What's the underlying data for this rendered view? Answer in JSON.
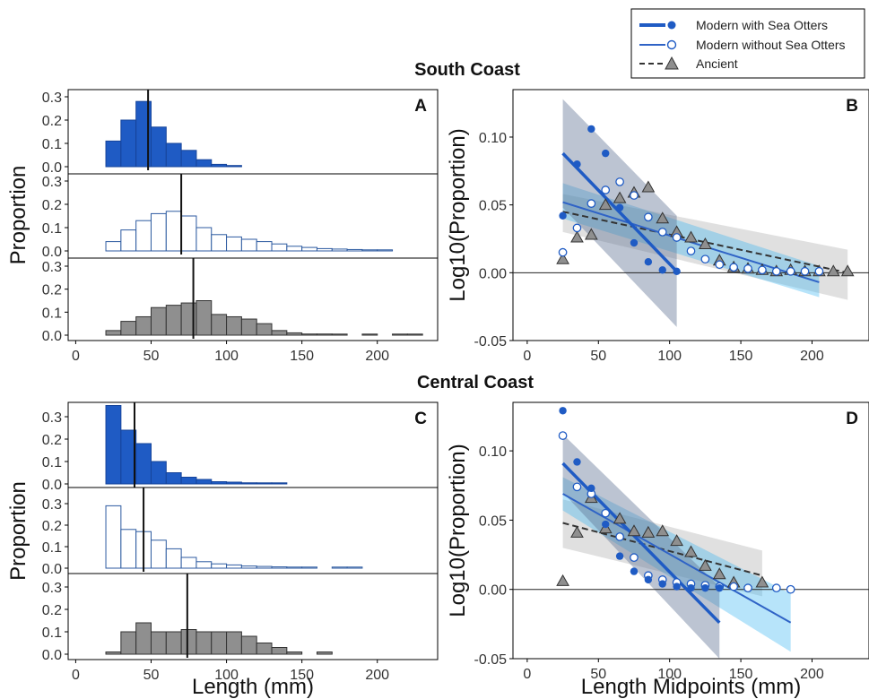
{
  "colors": {
    "modern_with": "#1f5bc4",
    "modern_without_edge": "#2c5aa0",
    "ancient": "#8f8f8f",
    "band_with": "#5f7394",
    "band_without": "#30b2f2",
    "band_ancient": "#d6d6d6",
    "median_line": "#111111"
  },
  "legend": {
    "modern_with": "Modern with Sea Otters",
    "modern_without": "Modern without Sea Otters",
    "ancient": "Ancient"
  },
  "titles": {
    "south": "South Coast",
    "central": "Central Coast"
  },
  "chart_data": [
    {
      "id": "A",
      "panel_label": "A",
      "type": "bar",
      "subtype": "stacked histograms",
      "ylabel": "Proportion",
      "xlim": [
        -5,
        240
      ],
      "xticks": [
        0,
        50,
        100,
        150,
        200
      ],
      "yticks": [
        0.0,
        0.1,
        0.2,
        0.3
      ],
      "bin_width": 10,
      "show_x_labels": true,
      "groups": [
        {
          "name": "Modern with Sea Otters",
          "fill": "modern_with",
          "median": 48,
          "centers": [
            25,
            35,
            45,
            55,
            65,
            75,
            85,
            95,
            105
          ],
          "values": [
            0.11,
            0.2,
            0.28,
            0.17,
            0.1,
            0.07,
            0.03,
            0.01,
            0.005
          ]
        },
        {
          "name": "Modern without Sea Otters",
          "fill": "none",
          "median": 70,
          "centers": [
            25,
            35,
            45,
            55,
            65,
            75,
            85,
            95,
            105,
            115,
            125,
            135,
            145,
            155,
            165,
            175,
            185,
            195,
            205
          ],
          "values": [
            0.04,
            0.09,
            0.13,
            0.16,
            0.17,
            0.15,
            0.1,
            0.07,
            0.06,
            0.05,
            0.04,
            0.03,
            0.02,
            0.015,
            0.01,
            0.008,
            0.006,
            0.004,
            0.003
          ]
        },
        {
          "name": "Ancient",
          "fill": "ancient",
          "median": 78,
          "centers": [
            25,
            35,
            45,
            55,
            65,
            75,
            85,
            95,
            105,
            115,
            125,
            135,
            145,
            155,
            165,
            175,
            195,
            215,
            225
          ],
          "values": [
            0.02,
            0.06,
            0.08,
            0.12,
            0.13,
            0.14,
            0.15,
            0.09,
            0.08,
            0.07,
            0.05,
            0.02,
            0.01,
            0.005,
            0.005,
            0.002,
            0.002,
            0.001,
            0.001
          ]
        }
      ]
    },
    {
      "id": "B",
      "panel_label": "B",
      "type": "scatter",
      "ylabel": "Log10(Proportion)",
      "xlim": [
        -10,
        240
      ],
      "ylim": [
        -0.05,
        0.135
      ],
      "xticks": [
        0,
        50,
        100,
        150,
        200
      ],
      "yticks": [
        -0.05,
        0.0,
        0.05,
        0.1
      ],
      "ytick_labels": [
        "-0.05",
        "0.00",
        "0.05",
        "0.10"
      ],
      "show_x_labels": true,
      "series": [
        {
          "name": "Modern with Sea Otters",
          "marker": "dot",
          "x": [
            25,
            35,
            45,
            55,
            65,
            75,
            85,
            95,
            105
          ],
          "y": [
            0.042,
            0.08,
            0.106,
            0.088,
            0.048,
            0.022,
            0.008,
            0.002,
            0.001
          ],
          "fit": [
            [
              25,
              0.088
            ],
            [
              105,
              0.001
            ]
          ],
          "band_lo": [
            [
              25,
              0.048
            ],
            [
              105,
              -0.04
            ]
          ],
          "band_hi": [
            [
              25,
              0.128
            ],
            [
              105,
              0.042
            ]
          ]
        },
        {
          "name": "Modern without Sea Otters",
          "marker": "circle",
          "x": [
            25,
            35,
            45,
            55,
            65,
            75,
            85,
            95,
            105,
            115,
            125,
            135,
            145,
            155,
            165,
            175,
            185,
            195,
            205
          ],
          "y": [
            0.015,
            0.033,
            0.051,
            0.061,
            0.067,
            0.057,
            0.041,
            0.03,
            0.026,
            0.016,
            0.01,
            0.006,
            0.004,
            0.003,
            0.002,
            0.001,
            0.001,
            0.001,
            0.001
          ],
          "fit": [
            [
              25,
              0.052
            ],
            [
              205,
              -0.007
            ]
          ],
          "band_lo": [
            [
              25,
              0.04
            ],
            [
              205,
              -0.018
            ]
          ],
          "band_hi": [
            [
              25,
              0.066
            ],
            [
              205,
              0.005
            ]
          ]
        },
        {
          "name": "Ancient",
          "marker": "triangle",
          "x": [
            25,
            35,
            45,
            55,
            65,
            75,
            85,
            95,
            105,
            115,
            125,
            135,
            145,
            155,
            165,
            175,
            185,
            195,
            205,
            215,
            225
          ],
          "y": [
            0.01,
            0.026,
            0.028,
            0.05,
            0.055,
            0.059,
            0.063,
            0.04,
            0.03,
            0.026,
            0.021,
            0.009,
            0.004,
            0.003,
            0.002,
            0.001,
            0.002,
            0.001,
            0.001,
            0.001,
            0.001
          ],
          "fit": [
            [
              25,
              0.045
            ],
            [
              225,
              0.0
            ]
          ],
          "band_lo": [
            [
              25,
              0.03
            ],
            [
              225,
              -0.02
            ]
          ],
          "band_hi": [
            [
              25,
              0.058
            ],
            [
              225,
              0.017
            ]
          ]
        }
      ]
    },
    {
      "id": "C",
      "panel_label": "C",
      "type": "bar",
      "subtype": "stacked histograms",
      "ylabel": "Proportion",
      "xlabel": "Length (mm)",
      "xlim": [
        -5,
        240
      ],
      "xticks": [
        0,
        50,
        100,
        150,
        200
      ],
      "yticks": [
        0.0,
        0.1,
        0.2,
        0.3
      ],
      "bin_width": 10,
      "show_x_labels": true,
      "groups": [
        {
          "name": "Modern with Sea Otters",
          "fill": "modern_with",
          "median": 39,
          "centers": [
            25,
            35,
            45,
            55,
            65,
            75,
            85,
            95,
            105,
            115,
            125,
            135
          ],
          "values": [
            0.35,
            0.24,
            0.18,
            0.1,
            0.05,
            0.03,
            0.02,
            0.01,
            0.008,
            0.005,
            0.003,
            0.002
          ]
        },
        {
          "name": "Modern without Sea Otters",
          "fill": "none",
          "median": 45,
          "centers": [
            25,
            35,
            45,
            55,
            65,
            75,
            85,
            95,
            105,
            115,
            125,
            135,
            145,
            155,
            175,
            185
          ],
          "values": [
            0.29,
            0.18,
            0.17,
            0.13,
            0.09,
            0.05,
            0.03,
            0.02,
            0.015,
            0.01,
            0.008,
            0.006,
            0.005,
            0.003,
            0.002,
            0.001
          ]
        },
        {
          "name": "Ancient",
          "fill": "ancient",
          "median": 74,
          "centers": [
            25,
            35,
            45,
            55,
            65,
            75,
            85,
            95,
            105,
            115,
            125,
            135,
            145,
            165
          ],
          "values": [
            0.01,
            0.1,
            0.14,
            0.1,
            0.1,
            0.11,
            0.1,
            0.1,
            0.1,
            0.08,
            0.05,
            0.03,
            0.01,
            0.01
          ]
        }
      ]
    },
    {
      "id": "D",
      "panel_label": "D",
      "type": "scatter",
      "ylabel": "Log10(Proportion)",
      "xlabel": "Length Midpoints (mm)",
      "xlim": [
        -10,
        240
      ],
      "ylim": [
        -0.05,
        0.135
      ],
      "xticks": [
        0,
        50,
        100,
        150,
        200
      ],
      "yticks": [
        -0.05,
        0.0,
        0.05,
        0.1
      ],
      "ytick_labels": [
        "-0.05",
        "0.00",
        "0.05",
        "0.10"
      ],
      "show_x_labels": true,
      "series": [
        {
          "name": "Modern with Sea Otters",
          "marker": "dot",
          "x": [
            25,
            35,
            45,
            55,
            65,
            75,
            85,
            95,
            105,
            115,
            125,
            135
          ],
          "y": [
            0.129,
            0.092,
            0.073,
            0.047,
            0.024,
            0.013,
            0.007,
            0.004,
            0.002,
            0.001,
            0.001,
            0.001
          ],
          "fit": [
            [
              25,
              0.091
            ],
            [
              135,
              -0.024
            ]
          ],
          "band_lo": [
            [
              25,
              0.07
            ],
            [
              135,
              -0.05
            ]
          ],
          "band_hi": [
            [
              25,
              0.112
            ],
            [
              135,
              0.002
            ]
          ]
        },
        {
          "name": "Modern without Sea Otters",
          "marker": "circle",
          "x": [
            25,
            35,
            45,
            55,
            65,
            75,
            85,
            95,
            105,
            115,
            125,
            135,
            145,
            155,
            175,
            185
          ],
          "y": [
            0.111,
            0.074,
            0.069,
            0.055,
            0.038,
            0.023,
            0.01,
            0.007,
            0.005,
            0.004,
            0.003,
            0.002,
            0.002,
            0.001,
            0.001,
            0.0
          ],
          "fit": [
            [
              25,
              0.069
            ],
            [
              185,
              -0.024
            ]
          ],
          "band_lo": [
            [
              25,
              0.057
            ],
            [
              185,
              -0.045
            ]
          ],
          "band_hi": [
            [
              25,
              0.081
            ],
            [
              185,
              -0.003
            ]
          ]
        },
        {
          "name": "Ancient",
          "marker": "triangle",
          "x": [
            25,
            35,
            45,
            55,
            65,
            75,
            85,
            95,
            105,
            115,
            125,
            135,
            145,
            165
          ],
          "y": [
            0.006,
            0.041,
            0.066,
            0.044,
            0.051,
            0.042,
            0.041,
            0.042,
            0.035,
            0.027,
            0.017,
            0.011,
            0.005,
            0.005
          ],
          "fit": [
            [
              25,
              0.048
            ],
            [
              165,
              0.01
            ]
          ],
          "band_lo": [
            [
              25,
              0.03
            ],
            [
              165,
              -0.005
            ]
          ],
          "band_hi": [
            [
              25,
              0.065
            ],
            [
              165,
              0.028
            ]
          ]
        }
      ]
    }
  ]
}
